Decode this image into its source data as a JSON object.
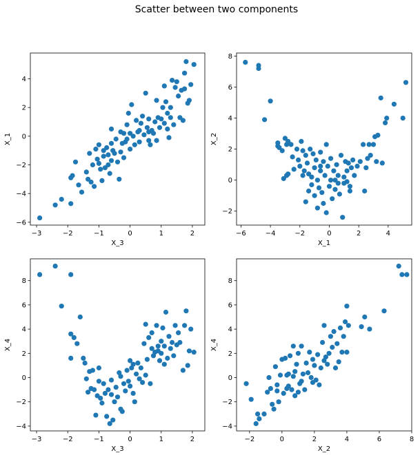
{
  "figure": {
    "title": "Scatter between two components",
    "point_color": "#1f77b4"
  },
  "chart_data": [
    {
      "type": "scatter",
      "xlabel": "X_3",
      "ylabel": "X_1",
      "xlim": [
        -3.2,
        2.4
      ],
      "ylim": [
        -6.2,
        5.8
      ],
      "xticks": [
        -3,
        -2,
        -1,
        0,
        1,
        2
      ],
      "yticks": [
        -6,
        -4,
        -2,
        0,
        2,
        4
      ],
      "grid": false,
      "points": [
        [
          -2.9,
          -5.7
        ],
        [
          -2.4,
          -4.8
        ],
        [
          -2.2,
          -4.4
        ],
        [
          -1.9,
          -4.7
        ],
        [
          -1.9,
          -2.9
        ],
        [
          -1.85,
          -2.75
        ],
        [
          -1.75,
          -1.8
        ],
        [
          -1.65,
          -3.4
        ],
        [
          -1.55,
          -3.9
        ],
        [
          -1.4,
          -2.5
        ],
        [
          -1.35,
          -3.0
        ],
        [
          -1.3,
          -1.2
        ],
        [
          -1.25,
          -3.2
        ],
        [
          -1.2,
          -2.0
        ],
        [
          -1.15,
          -3.5
        ],
        [
          -1.1,
          -0.9
        ],
        [
          -1.05,
          -1.6
        ],
        [
          -1.0,
          -0.6
        ],
        [
          -1.0,
          -1.9
        ],
        [
          -0.95,
          -2.3
        ],
        [
          -0.9,
          -3.1
        ],
        [
          -0.85,
          -1.0
        ],
        [
          -0.85,
          -1.4
        ],
        [
          -0.8,
          -2.2
        ],
        [
          -0.75,
          -0.8
        ],
        [
          -0.7,
          -2.0
        ],
        [
          -0.7,
          -1.3
        ],
        [
          -0.65,
          -2.6
        ],
        [
          -0.6,
          -0.5
        ],
        [
          -0.6,
          -1.7
        ],
        [
          -0.55,
          -1.0
        ],
        [
          -0.5,
          -1.2
        ],
        [
          -0.45,
          -0.2
        ],
        [
          -0.4,
          -1.8
        ],
        [
          -0.35,
          -3.0
        ],
        [
          -0.3,
          0.3
        ],
        [
          -0.3,
          -1.1
        ],
        [
          -0.25,
          -0.5
        ],
        [
          -0.2,
          -1.5
        ],
        [
          -0.15,
          -0.4
        ],
        [
          -0.1,
          0.8
        ],
        [
          -0.1,
          -0.2
        ],
        [
          -0.05,
          1.6
        ],
        [
          0.0,
          0.2
        ],
        [
          0.0,
          -0.9
        ],
        [
          0.05,
          2.2
        ],
        [
          0.1,
          0.0
        ],
        [
          0.15,
          -0.6
        ],
        [
          0.2,
          1.1
        ],
        [
          0.25,
          0.3
        ],
        [
          0.3,
          -0.4
        ],
        [
          0.35,
          0.9
        ],
        [
          0.4,
          1.4
        ],
        [
          0.45,
          0.1
        ],
        [
          0.5,
          3.0
        ],
        [
          0.55,
          0.6
        ],
        [
          0.6,
          -0.3
        ],
        [
          0.6,
          1.2
        ],
        [
          0.65,
          -0.6
        ],
        [
          0.7,
          0.4
        ],
        [
          0.75,
          0.2
        ],
        [
          0.8,
          1.0
        ],
        [
          0.85,
          2.5
        ],
        [
          0.85,
          -0.3
        ],
        [
          0.9,
          1.3
        ],
        [
          0.95,
          0.6
        ],
        [
          1.0,
          1.2
        ],
        [
          1.05,
          2.0
        ],
        [
          1.1,
          0.9
        ],
        [
          1.1,
          3.5
        ],
        [
          1.15,
          2.4
        ],
        [
          1.2,
          0.5
        ],
        [
          1.2,
          1.6
        ],
        [
          1.25,
          -0.1
        ],
        [
          1.3,
          2.0
        ],
        [
          1.35,
          3.9
        ],
        [
          1.4,
          0.8
        ],
        [
          1.45,
          3.4
        ],
        [
          1.5,
          3.8
        ],
        [
          1.55,
          2.8
        ],
        [
          1.6,
          1.3
        ],
        [
          1.65,
          3.2
        ],
        [
          1.7,
          1.1
        ],
        [
          1.75,
          4.4
        ],
        [
          1.75,
          3.3
        ],
        [
          1.8,
          5.2
        ],
        [
          1.85,
          2.3
        ],
        [
          1.9,
          2.5
        ],
        [
          1.95,
          3.6
        ],
        [
          2.05,
          5.0
        ],
        [
          -0.2,
          0.2
        ],
        [
          0.3,
          0.4
        ],
        [
          -0.6,
          0.5
        ],
        [
          0.6,
          0.3
        ],
        [
          1.3,
          1.3
        ]
      ]
    },
    {
      "type": "scatter",
      "xlabel": "X_1",
      "ylabel": "X_2",
      "xlim": [
        -6.3,
        5.6
      ],
      "ylim": [
        -2.9,
        8.2
      ],
      "xticks": [
        -6,
        -4,
        -2,
        0,
        2,
        4
      ],
      "yticks": [
        -2,
        0,
        2,
        4,
        6,
        8
      ],
      "grid": false,
      "points": [
        [
          -5.7,
          7.6
        ],
        [
          -4.8,
          7.4
        ],
        [
          -4.8,
          7.2
        ],
        [
          -4.4,
          3.9
        ],
        [
          -4.0,
          5.1
        ],
        [
          -3.5,
          2.2
        ],
        [
          -3.5,
          2.4
        ],
        [
          -3.4,
          2.1
        ],
        [
          -3.2,
          1.9
        ],
        [
          -3.1,
          0.1
        ],
        [
          -3.0,
          2.7
        ],
        [
          -2.9,
          2.3
        ],
        [
          -2.9,
          0.3
        ],
        [
          -2.8,
          2.5
        ],
        [
          -2.6,
          2.3
        ],
        [
          -2.5,
          1.5
        ],
        [
          -2.4,
          0.7
        ],
        [
          -2.2,
          2.0
        ],
        [
          -2.1,
          1.3
        ],
        [
          -2.0,
          0.9
        ],
        [
          -1.9,
          2.5
        ],
        [
          -1.8,
          1.9
        ],
        [
          -1.8,
          0.3
        ],
        [
          -1.7,
          0.6
        ],
        [
          -1.6,
          1.6
        ],
        [
          -1.6,
          -1.4
        ],
        [
          -1.5,
          1.1
        ],
        [
          -1.4,
          0.4
        ],
        [
          -1.4,
          -0.7
        ],
        [
          -1.3,
          2.0
        ],
        [
          -1.2,
          0.2
        ],
        [
          -1.2,
          -0.3
        ],
        [
          -1.1,
          1.7
        ],
        [
          -1.0,
          0.8
        ],
        [
          -1.0,
          -1.0
        ],
        [
          -0.9,
          1.3
        ],
        [
          -0.8,
          0.0
        ],
        [
          -0.8,
          -1.8
        ],
        [
          -0.7,
          -0.5
        ],
        [
          -0.6,
          0.6
        ],
        [
          -0.6,
          1.8
        ],
        [
          -0.5,
          -0.8
        ],
        [
          -0.4,
          1.2
        ],
        [
          -0.4,
          -1.5
        ],
        [
          -0.3,
          0.3
        ],
        [
          -0.2,
          -2.1
        ],
        [
          -0.2,
          2.3
        ],
        [
          -0.1,
          0.9
        ],
        [
          0.0,
          -0.4
        ],
        [
          0.1,
          0.0
        ],
        [
          0.1,
          1.4
        ],
        [
          0.2,
          -1.2
        ],
        [
          0.3,
          0.6
        ],
        [
          0.4,
          -0.6
        ],
        [
          0.4,
          0.0
        ],
        [
          0.5,
          1.0
        ],
        [
          0.6,
          -0.2
        ],
        [
          0.6,
          0.3
        ],
        [
          0.7,
          -0.9
        ],
        [
          0.8,
          1.6
        ],
        [
          0.9,
          -2.4
        ],
        [
          1.0,
          0.2
        ],
        [
          1.0,
          -0.2
        ],
        [
          1.1,
          1.2
        ],
        [
          1.2,
          -0.1
        ],
        [
          1.2,
          0.6
        ],
        [
          1.3,
          1.1
        ],
        [
          1.4,
          -0.7
        ],
        [
          1.5,
          0.8
        ],
        [
          1.6,
          1.3
        ],
        [
          1.7,
          0.3
        ],
        [
          1.9,
          0.9
        ],
        [
          2.1,
          1.2
        ],
        [
          2.3,
          2.3
        ],
        [
          2.4,
          -0.7
        ],
        [
          2.5,
          0.8
        ],
        [
          2.6,
          1.4
        ],
        [
          2.7,
          2.3
        ],
        [
          2.8,
          1.6
        ],
        [
          3.0,
          2.3
        ],
        [
          3.1,
          2.8
        ],
        [
          3.2,
          1.2
        ],
        [
          3.3,
          2.9
        ],
        [
          3.5,
          5.3
        ],
        [
          3.6,
          1.1
        ],
        [
          3.8,
          3.7
        ],
        [
          3.9,
          4.0
        ],
        [
          4.4,
          4.9
        ],
        [
          5.0,
          4.0
        ],
        [
          5.2,
          6.3
        ],
        [
          -2.8,
          0.4
        ],
        [
          1.4,
          -0.4
        ],
        [
          -0.6,
          0.9
        ]
      ]
    },
    {
      "type": "scatter",
      "xlabel": "X_3",
      "ylabel": "X_4",
      "xlim": [
        -3.2,
        2.4
      ],
      "ylim": [
        -4.4,
        9.8
      ],
      "xticks": [
        -3,
        -2,
        -1,
        0,
        1,
        2
      ],
      "yticks": [
        -4,
        -2,
        0,
        2,
        4,
        6,
        8
      ],
      "grid": false,
      "points": [
        [
          -2.9,
          8.5
        ],
        [
          -2.4,
          9.2
        ],
        [
          -2.2,
          5.9
        ],
        [
          -1.9,
          8.5
        ],
        [
          -1.9,
          3.6
        ],
        [
          -1.9,
          1.6
        ],
        [
          -1.8,
          3.3
        ],
        [
          -1.7,
          2.8
        ],
        [
          -1.6,
          5.0
        ],
        [
          -1.5,
          1.6
        ],
        [
          -1.45,
          1.2
        ],
        [
          -1.4,
          -0.1
        ],
        [
          -1.35,
          -1.2
        ],
        [
          -1.3,
          0.5
        ],
        [
          -1.25,
          -0.9
        ],
        [
          -1.2,
          0.6
        ],
        [
          -1.15,
          -1.0
        ],
        [
          -1.1,
          -3.1
        ],
        [
          -1.05,
          -1.5
        ],
        [
          -1.0,
          0.8
        ],
        [
          -1.0,
          -0.3
        ],
        [
          -0.95,
          -1.7
        ],
        [
          -0.9,
          -2.1
        ],
        [
          -0.85,
          -0.5
        ],
        [
          -0.8,
          -1.3
        ],
        [
          -0.75,
          -3.2
        ],
        [
          -0.7,
          -1.0
        ],
        [
          -0.65,
          -3.8
        ],
        [
          -0.6,
          -1.4
        ],
        [
          -0.6,
          -0.2
        ],
        [
          -0.55,
          -3.5
        ],
        [
          -0.5,
          -2.0
        ],
        [
          -0.45,
          -0.8
        ],
        [
          -0.4,
          -1.6
        ],
        [
          -0.35,
          0.4
        ],
        [
          -0.3,
          -2.6
        ],
        [
          -0.3,
          0.1
        ],
        [
          -0.25,
          -2.8
        ],
        [
          -0.2,
          -0.5
        ],
        [
          -0.15,
          -1.1
        ],
        [
          -0.1,
          0.6
        ],
        [
          -0.05,
          -0.3
        ],
        [
          0.0,
          1.4
        ],
        [
          0.0,
          -0.7
        ],
        [
          0.05,
          0.8
        ],
        [
          0.1,
          -1.3
        ],
        [
          0.1,
          1.1
        ],
        [
          0.15,
          -2.0
        ],
        [
          0.2,
          0.3
        ],
        [
          0.25,
          1.2
        ],
        [
          0.3,
          -0.1
        ],
        [
          0.35,
          0.8
        ],
        [
          0.4,
          -0.4
        ],
        [
          0.45,
          2.8
        ],
        [
          0.5,
          4.4
        ],
        [
          0.5,
          0.2
        ],
        [
          0.55,
          1.5
        ],
        [
          0.6,
          3.3
        ],
        [
          0.65,
          -0.5
        ],
        [
          0.7,
          2.4
        ],
        [
          0.7,
          3.7
        ],
        [
          0.75,
          1.8
        ],
        [
          0.8,
          2.1
        ],
        [
          0.85,
          4.3
        ],
        [
          0.9,
          2.6
        ],
        [
          0.95,
          1.4
        ],
        [
          1.0,
          2.0
        ],
        [
          1.0,
          3.0
        ],
        [
          1.05,
          4.1
        ],
        [
          1.1,
          1.1
        ],
        [
          1.1,
          2.6
        ],
        [
          1.15,
          5.4
        ],
        [
          1.2,
          1.6
        ],
        [
          1.25,
          3.4
        ],
        [
          1.3,
          2.4
        ],
        [
          1.35,
          2.9
        ],
        [
          1.4,
          1.8
        ],
        [
          1.45,
          4.3
        ],
        [
          1.5,
          2.7
        ],
        [
          1.55,
          3.7
        ],
        [
          1.6,
          2.9
        ],
        [
          1.7,
          0.6
        ],
        [
          1.75,
          4.3
        ],
        [
          1.8,
          5.5
        ],
        [
          1.85,
          1.0
        ],
        [
          1.9,
          2.2
        ],
        [
          1.95,
          4.0
        ],
        [
          2.05,
          2.1
        ],
        [
          0.9,
          2.2
        ]
      ]
    },
    {
      "type": "scatter",
      "xlabel": "X_2",
      "ylabel": "X_4",
      "xlim": [
        -2.8,
        8.0
      ],
      "ylim": [
        -4.4,
        9.8
      ],
      "xticks": [
        -2,
        0,
        2,
        4,
        6,
        8
      ],
      "yticks": [
        -4,
        -2,
        0,
        2,
        4,
        6,
        8
      ],
      "grid": false,
      "points": [
        [
          -2.2,
          -0.5
        ],
        [
          -1.9,
          -1.8
        ],
        [
          -1.6,
          -3.8
        ],
        [
          -1.5,
          -3.0
        ],
        [
          -1.4,
          -3.4
        ],
        [
          -1.1,
          -3.0
        ],
        [
          -0.9,
          -1.2
        ],
        [
          -0.8,
          0.0
        ],
        [
          -0.7,
          -0.9
        ],
        [
          -0.6,
          -2.2
        ],
        [
          -0.5,
          -2.6
        ],
        [
          -0.4,
          0.9
        ],
        [
          -0.3,
          -1.1
        ],
        [
          -0.2,
          -2.0
        ],
        [
          -0.1,
          0.2
        ],
        [
          0.0,
          1.5
        ],
        [
          0.1,
          -1.3
        ],
        [
          0.2,
          1.6
        ],
        [
          0.3,
          -0.9
        ],
        [
          0.4,
          0.3
        ],
        [
          0.5,
          1.8
        ],
        [
          0.6,
          -1.0
        ],
        [
          0.7,
          2.6
        ],
        [
          0.8,
          -1.5
        ],
        [
          0.8,
          0.5
        ],
        [
          0.9,
          1.1
        ],
        [
          1.0,
          -1.2
        ],
        [
          1.0,
          2.0
        ],
        [
          1.1,
          -0.5
        ],
        [
          1.2,
          2.6
        ],
        [
          1.3,
          0.3
        ],
        [
          1.4,
          -1.0
        ],
        [
          1.5,
          1.2
        ],
        [
          1.6,
          0.4
        ],
        [
          1.7,
          2.1
        ],
        [
          1.8,
          0.0
        ],
        [
          1.9,
          -0.4
        ],
        [
          2.0,
          1.0
        ],
        [
          2.1,
          -0.2
        ],
        [
          2.2,
          1.9
        ],
        [
          2.3,
          -0.6
        ],
        [
          2.4,
          0.8
        ],
        [
          2.5,
          2.9
        ],
        [
          2.6,
          4.3
        ],
        [
          2.7,
          1.7
        ],
        [
          2.8,
          1.1
        ],
        [
          2.9,
          2.0
        ],
        [
          3.0,
          3.4
        ],
        [
          3.1,
          2.5
        ],
        [
          3.2,
          3.8
        ],
        [
          3.3,
          0.8
        ],
        [
          3.4,
          2.8
        ],
        [
          3.5,
          1.3
        ],
        [
          3.6,
          4.1
        ],
        [
          3.7,
          2.1
        ],
        [
          3.8,
          3.4
        ],
        [
          3.9,
          4.6
        ],
        [
          4.0,
          5.9
        ],
        [
          4.0,
          2.1
        ],
        [
          4.1,
          4.3
        ],
        [
          4.9,
          4.2
        ],
        [
          5.1,
          5.0
        ],
        [
          5.4,
          4.0
        ],
        [
          6.3,
          5.5
        ],
        [
          7.2,
          9.2
        ],
        [
          7.4,
          8.5
        ],
        [
          7.7,
          8.5
        ],
        [
          0.3,
          0.2
        ],
        [
          0.7,
          0.1
        ],
        [
          1.2,
          -0.3
        ],
        [
          2.6,
          1.4
        ],
        [
          -0.3,
          -0.6
        ],
        [
          1.9,
          1.5
        ],
        [
          0.4,
          -0.7
        ]
      ]
    }
  ]
}
